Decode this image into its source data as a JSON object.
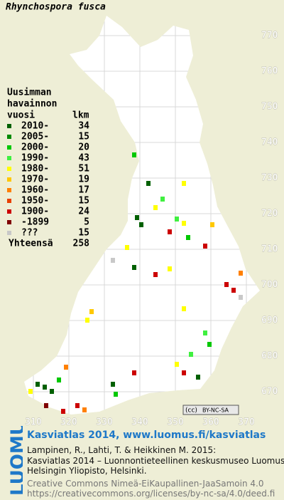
{
  "title": "Rhynchospora fusca",
  "legend": {
    "heading": [
      "Uusimman",
      "havainnon",
      "vuosi"
    ],
    "count_heading": "lkm",
    "rows": [
      {
        "label": "2010-",
        "count": 34,
        "color": "#006000"
      },
      {
        "label": "2005-",
        "count": 15,
        "color": "#008a00"
      },
      {
        "label": "2000-",
        "count": 20,
        "color": "#00c800"
      },
      {
        "label": "1990-",
        "count": 43,
        "color": "#40f040"
      },
      {
        "label": "1980-",
        "count": 51,
        "color": "#ffff00"
      },
      {
        "label": "1970-",
        "count": 19,
        "color": "#ffc800"
      },
      {
        "label": "1960-",
        "count": 17,
        "color": "#ff8000"
      },
      {
        "label": "1950-",
        "count": 15,
        "color": "#e84000"
      },
      {
        "label": "1900-",
        "count": 24,
        "color": "#cc0000"
      },
      {
        "label": "-1899",
        "count": 5,
        "color": "#800000"
      },
      {
        "label": "???",
        "count": 15,
        "color": "#c8c8c8"
      }
    ],
    "total_label": "Yhteensä",
    "total": 258
  },
  "grid": {
    "y_labels": [
      "770",
      "760",
      "750",
      "740",
      "730",
      "720",
      "710",
      "700",
      "690",
      "680",
      "670"
    ],
    "x_labels": [
      "310",
      "320",
      "330",
      "340",
      "350",
      "360",
      "370"
    ]
  },
  "license_badge": {
    "cc": "(cc)",
    "terms": "BY-NC-SA"
  },
  "footer": {
    "logo": "LUOMUS",
    "headline": "Kasviatlas 2014, www.luomus.fi/kasviatlas",
    "citation": [
      "Lampinen, R., Lahti, T. & Heikkinen M. 2015:",
      "Kasviatlas 2014 – Luonnontieteellinen keskusmuseo Luomus,",
      "Helsingin Yliopisto, Helsinki."
    ],
    "license": [
      "Creative Commons Nimeä-EiKaupallinen-JaaSamoin 4.0",
      "https://creativecommons.org/licenses/by-nc-sa/4.0/deed.fi"
    ]
  }
}
